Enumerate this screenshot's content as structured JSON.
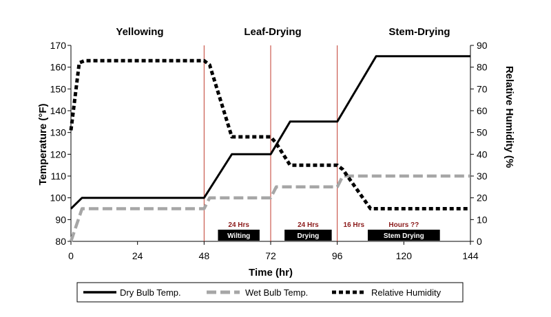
{
  "chart_data": {
    "type": "line",
    "phases": [
      "Yellowing",
      "Leaf-Drying",
      "Stem-Drying"
    ],
    "xlabel": "Time (hr)",
    "ylabel_left": "Temperature (°F)",
    "ylabel_right": "Relative Humidity (%",
    "xlim": [
      0,
      144
    ],
    "ylim_left": [
      80,
      170
    ],
    "ylim_right": [
      0,
      90
    ],
    "x_ticks": [
      "0",
      "24",
      "48",
      "72",
      "96",
      "120",
      "144"
    ],
    "y_left_ticks": [
      "80",
      "90",
      "100",
      "110",
      "120",
      "130",
      "140",
      "150",
      "160",
      "170"
    ],
    "y_right_ticks": [
      "0",
      "10",
      "20",
      "30",
      "40",
      "50",
      "60",
      "70",
      "80",
      "90"
    ],
    "phase_dividers": [
      48,
      72,
      96
    ],
    "stage_bars": [
      {
        "label": "Wilting",
        "duration": "24 Hrs",
        "start": 53,
        "end": 68
      },
      {
        "label": "Drying",
        "duration": "24 Hrs",
        "start": 77,
        "end": 94
      },
      {
        "label": "",
        "duration": "16 Hrs",
        "start": 96,
        "end": 108
      },
      {
        "label": "Stem Drying",
        "duration": "Hours ??",
        "start": 107,
        "end": 133
      }
    ],
    "series": [
      {
        "name": "Dry Bulb Temp.",
        "axis": "left",
        "style": "solid",
        "color": "#000000",
        "points": [
          [
            0,
            95
          ],
          [
            4,
            100
          ],
          [
            48,
            100
          ],
          [
            58,
            120
          ],
          [
            72,
            120
          ],
          [
            79,
            135
          ],
          [
            96,
            135
          ],
          [
            110,
            165
          ],
          [
            144,
            165
          ]
        ]
      },
      {
        "name": "Wet Bulb Temp.",
        "axis": "left",
        "style": "long-dash",
        "color": "#a6a6a6",
        "points": [
          [
            0,
            80
          ],
          [
            4,
            95
          ],
          [
            48,
            95
          ],
          [
            50,
            100
          ],
          [
            72,
            100
          ],
          [
            74,
            105
          ],
          [
            96,
            105
          ],
          [
            98,
            110
          ],
          [
            144,
            110
          ]
        ]
      },
      {
        "name": "Relative Humidity",
        "axis": "right",
        "style": "short-dash",
        "color": "#000000",
        "points": [
          [
            0,
            51
          ],
          [
            3,
            82
          ],
          [
            5,
            83
          ],
          [
            48,
            83
          ],
          [
            50,
            81
          ],
          [
            58,
            48
          ],
          [
            59,
            48
          ],
          [
            72,
            48
          ],
          [
            74,
            45
          ],
          [
            79,
            35
          ],
          [
            96,
            35
          ],
          [
            98,
            33
          ],
          [
            108,
            15
          ],
          [
            144,
            15
          ]
        ]
      }
    ]
  }
}
